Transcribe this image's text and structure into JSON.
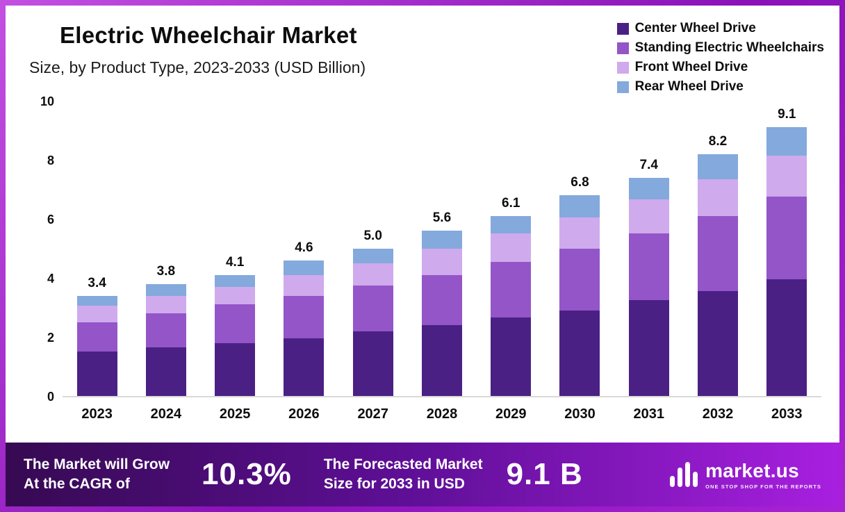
{
  "header": {
    "title": "Electric Wheelchair Market",
    "subtitle": "Size, by Product Type, 2023-2033 (USD Billion)"
  },
  "chart_data": {
    "type": "bar",
    "stacked": true,
    "title": "Electric Wheelchair Market",
    "subtitle": "Size, by Product Type, 2023-2033 (USD Billion)",
    "unit": "USD Billion",
    "categories": [
      "2023",
      "2024",
      "2025",
      "2026",
      "2027",
      "2028",
      "2029",
      "2030",
      "2031",
      "2032",
      "2033"
    ],
    "series": [
      {
        "name": "Center Wheel Drive",
        "color": "#4b2084",
        "values": [
          1.5,
          1.65,
          1.8,
          1.95,
          2.2,
          2.4,
          2.65,
          2.9,
          3.25,
          3.55,
          3.95
        ]
      },
      {
        "name": "Standing Electric Wheelchairs",
        "color": "#9355c8",
        "values": [
          1.0,
          1.15,
          1.3,
          1.45,
          1.55,
          1.7,
          1.9,
          2.1,
          2.25,
          2.55,
          2.8
        ]
      },
      {
        "name": "Front Wheel Drive",
        "color": "#cfaaec",
        "values": [
          0.55,
          0.6,
          0.6,
          0.7,
          0.75,
          0.9,
          0.95,
          1.05,
          1.15,
          1.25,
          1.4
        ]
      },
      {
        "name": "Rear Wheel Drive",
        "color": "#84a9dc",
        "values": [
          0.35,
          0.4,
          0.4,
          0.5,
          0.5,
          0.6,
          0.6,
          0.75,
          0.75,
          0.85,
          0.95
        ]
      }
    ],
    "totals": [
      3.4,
      3.8,
      4.1,
      4.6,
      5.0,
      5.6,
      6.1,
      6.8,
      7.4,
      8.2,
      9.1
    ],
    "ylim": [
      0,
      10
    ],
    "yticks": [
      0,
      2,
      4,
      6,
      8,
      10
    ],
    "grid": false,
    "legend_position": "top-right"
  },
  "footer": {
    "growth_label_line1": "The Market will Grow",
    "growth_label_line2": "At the CAGR of",
    "cagr_value": "10.3%",
    "forecast_label_line1": "The Forecasted Market",
    "forecast_label_line2": "Size for 2033 in USD",
    "forecast_value": "9.1 B",
    "brand": "market.us",
    "brand_tagline": "ONE STOP SHOP FOR THE REPORTS"
  },
  "colors": {
    "frame_border": "#9c1ec6",
    "banner_gradient_start": "#360a52",
    "banner_gradient_end": "#a81fe0",
    "axis_line": "#d9d9d9"
  }
}
